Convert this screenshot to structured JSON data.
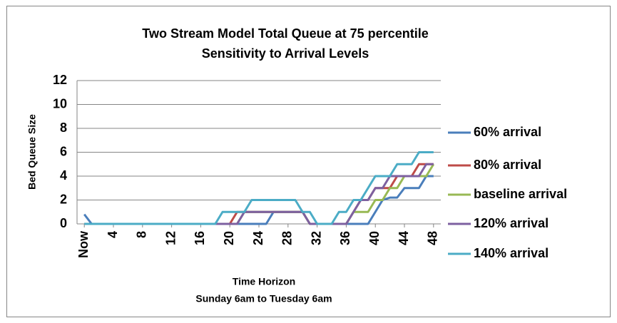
{
  "chart_data": {
    "type": "line",
    "title": [
      "Two Stream Model Total Queue at 75 percentile",
      "Sensitivity to Arrival Levels"
    ],
    "y_label": "Bed Queue Size",
    "x_label": [
      "Time Horizon",
      "Sunday 6am to Tuesday 6am"
    ],
    "x": [
      0,
      1,
      2,
      3,
      4,
      5,
      6,
      7,
      8,
      9,
      10,
      11,
      12,
      13,
      14,
      15,
      16,
      17,
      18,
      19,
      20,
      21,
      22,
      23,
      24,
      25,
      26,
      27,
      28,
      29,
      30,
      31,
      32,
      33,
      34,
      35,
      36,
      37,
      38,
      39,
      40,
      41,
      42,
      43,
      44,
      45,
      46,
      47,
      48
    ],
    "xlim": [
      -1,
      49
    ],
    "xticks": [
      {
        "value": 0,
        "label": "Now"
      },
      4,
      8,
      12,
      16,
      20,
      24,
      28,
      32,
      36,
      40,
      44,
      48
    ],
    "ylim": [
      0,
      12
    ],
    "yticks": [
      0,
      2,
      4,
      6,
      8,
      10,
      12
    ],
    "grid": true,
    "legend": "right",
    "series": [
      {
        "name": "60% arrival",
        "color": "#4a7ebb",
        "values": [
          0.8,
          0,
          0,
          0,
          0,
          0,
          0,
          0,
          0,
          0,
          0,
          0,
          0,
          0,
          0,
          0,
          0,
          0,
          0,
          0,
          0,
          0,
          0,
          0,
          0,
          0,
          1,
          1,
          1,
          1,
          1,
          0,
          0,
          0,
          0,
          0,
          0,
          0,
          0,
          0,
          1,
          2,
          2.2,
          2.2,
          3,
          3,
          3,
          4,
          4
        ]
      },
      {
        "name": "80% arrival",
        "color": "#be4b48",
        "values": [
          0,
          0,
          0,
          0,
          0,
          0,
          0,
          0,
          0,
          0,
          0,
          0,
          0,
          0,
          0,
          0,
          0,
          0,
          0,
          0,
          0,
          1,
          1,
          1,
          1,
          1,
          1,
          1,
          1,
          1,
          1,
          0,
          0,
          0,
          0,
          0,
          0,
          1,
          2,
          2,
          3,
          3,
          3,
          4,
          4,
          4,
          5,
          5,
          5
        ]
      },
      {
        "name": "baseline arrival",
        "color": "#98b954",
        "values": [
          0,
          0,
          0,
          0,
          0,
          0,
          0,
          0,
          0,
          0,
          0,
          0,
          0,
          0,
          0,
          0,
          0,
          0,
          0,
          0,
          0,
          0,
          1,
          1,
          1,
          1,
          1,
          1,
          1,
          1,
          1,
          0,
          0,
          0,
          0,
          0,
          0,
          1,
          1,
          1,
          2,
          2,
          3,
          3,
          4,
          4,
          4,
          4,
          5
        ]
      },
      {
        "name": "120% arrival",
        "color": "#7d60a0",
        "values": [
          0,
          0,
          0,
          0,
          0,
          0,
          0,
          0,
          0,
          0,
          0,
          0,
          0,
          0,
          0,
          0,
          0,
          0,
          0,
          0,
          0,
          0,
          1,
          1,
          1,
          1,
          1,
          1,
          1,
          1,
          1,
          0,
          0,
          0,
          0,
          0,
          0,
          1,
          2,
          2,
          3,
          3,
          4,
          4,
          4,
          4,
          4,
          5,
          5
        ]
      },
      {
        "name": "140% arrival",
        "color": "#4bacc6",
        "values": [
          0,
          0,
          0,
          0,
          0,
          0,
          0,
          0,
          0,
          0,
          0,
          0,
          0,
          0,
          0,
          0,
          0,
          0,
          0,
          1,
          1,
          1,
          1,
          2,
          2,
          2,
          2,
          2,
          2,
          2,
          1,
          1,
          0,
          0,
          0,
          1,
          1,
          2,
          2,
          3,
          4,
          4,
          4,
          5,
          5,
          5,
          6,
          6,
          6
        ]
      }
    ]
  }
}
